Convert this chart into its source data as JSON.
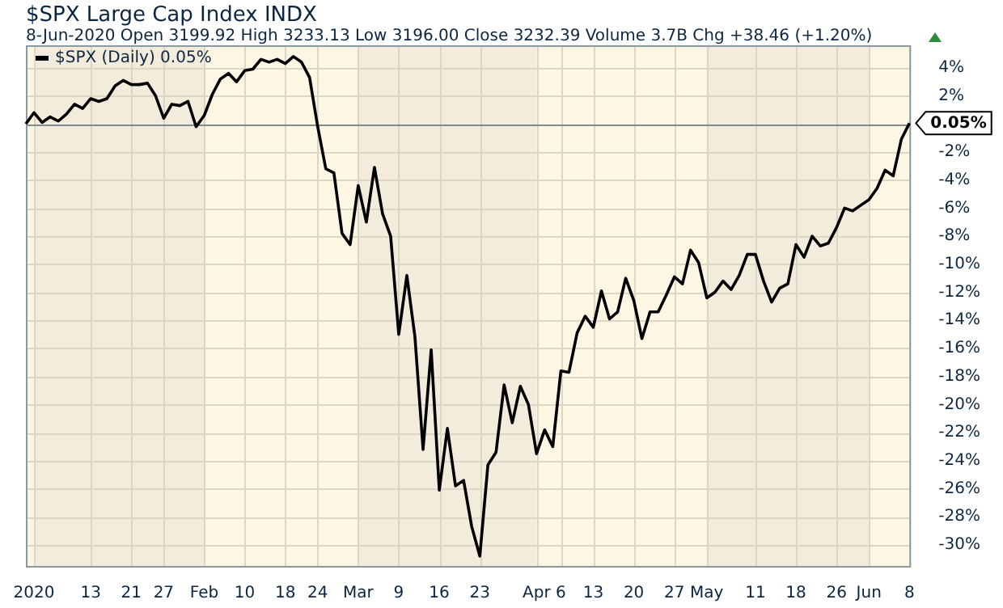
{
  "chart_data": {
    "type": "line",
    "title": "$SPX Large Cap Index INDX",
    "subtitle": "8-Jun-2020   Open 3199.92  High 3233.13  Low 3196.00  Close 3232.39  Volume 3.7B  Chg +38.46 (+1.20%)",
    "categories": [
      null,
      "2020",
      null,
      null,
      null,
      null,
      null,
      null,
      "13",
      null,
      null,
      null,
      null,
      "21",
      null,
      null,
      null,
      "27",
      null,
      null,
      null,
      null,
      "Feb",
      null,
      null,
      null,
      null,
      "10",
      null,
      null,
      null,
      null,
      "18",
      null,
      null,
      null,
      "24",
      null,
      null,
      null,
      null,
      "Mar",
      null,
      null,
      null,
      null,
      "9",
      null,
      null,
      null,
      null,
      "16",
      null,
      null,
      null,
      null,
      "23",
      null,
      null,
      null,
      null,
      null,
      null,
      "Apr",
      null,
      null,
      "6",
      null,
      null,
      null,
      "13",
      null,
      null,
      null,
      null,
      "20",
      null,
      null,
      null,
      null,
      "27",
      null,
      null,
      null,
      "May",
      null,
      null,
      null,
      null,
      null,
      "11",
      null,
      null,
      null,
      null,
      "18",
      null,
      null,
      null,
      null,
      "26",
      null,
      null,
      null,
      "Jun",
      null,
      null,
      null,
      null,
      "8"
    ],
    "series": [
      {
        "name": "$SPX (Daily) 0.05%",
        "color": "#000000",
        "values": [
          0,
          0.8,
          0.1,
          0.5,
          0.2,
          0.7,
          1.4,
          1.1,
          1.8,
          1.6,
          1.8,
          2.7,
          3.1,
          2.8,
          2.8,
          2.9,
          2.0,
          0.4,
          1.4,
          1.3,
          1.6,
          -0.2,
          0.6,
          2.1,
          3.2,
          3.6,
          3.0,
          3.8,
          3.9,
          4.6,
          4.4,
          4.6,
          4.3,
          4.8,
          4.4,
          3.3,
          -0.2,
          -3.2,
          -3.5,
          -7.8,
          -8.6,
          -4.4,
          -7.0,
          -3.1,
          -6.4,
          -8.0,
          -15.0,
          -10.8,
          -15.2,
          -23.2,
          -16.1,
          -26.1,
          -21.7,
          -25.8,
          -25.4,
          -28.7,
          -30.8,
          -24.3,
          -23.4,
          -18.6,
          -21.3,
          -18.7,
          -20.0,
          -23.5,
          -21.8,
          -23.0,
          -17.6,
          -17.7,
          -14.9,
          -13.7,
          -14.5,
          -11.9,
          -13.9,
          -13.4,
          -11.0,
          -12.6,
          -15.3,
          -13.4,
          -13.4,
          -12.2,
          -10.9,
          -11.4,
          -9.0,
          -9.9,
          -12.4,
          -12.0,
          -11.2,
          -11.8,
          -10.8,
          -9.3,
          -9.3,
          -11.2,
          -12.7,
          -11.7,
          -11.4,
          -8.6,
          -9.5,
          -8.0,
          -8.7,
          -8.5,
          -7.4,
          -6.0,
          -6.2,
          -5.8,
          -5.4,
          -4.6,
          -3.3,
          -3.7,
          -1.1,
          0.05
        ]
      }
    ],
    "ylim": [
      -31.5,
      5.6
    ],
    "yticks": [
      {
        "value": 4,
        "label": "4%"
      },
      {
        "value": 2,
        "label": "2%"
      },
      {
        "value": 0,
        "label": null
      },
      {
        "value": -2,
        "label": "-2%"
      },
      {
        "value": -4,
        "label": "-4%"
      },
      {
        "value": -6,
        "label": "-6%"
      },
      {
        "value": -8,
        "label": "-8%"
      },
      {
        "value": -10,
        "label": "-10%"
      },
      {
        "value": -12,
        "label": "-12%"
      },
      {
        "value": -14,
        "label": "-14%"
      },
      {
        "value": -16,
        "label": "-16%"
      },
      {
        "value": -18,
        "label": "-18%"
      },
      {
        "value": -20,
        "label": "-20%"
      },
      {
        "value": -22,
        "label": "-22%"
      },
      {
        "value": -24,
        "label": "-24%"
      },
      {
        "value": -26,
        "label": "-26%"
      },
      {
        "value": -28,
        "label": "-28%"
      },
      {
        "value": -30,
        "label": "-30%"
      }
    ],
    "ref_lines": [
      {
        "axis": "y",
        "value": 0,
        "color": "#7f8c8d"
      }
    ],
    "bands": [
      {
        "axis": "x",
        "from": "2020",
        "to": "Feb",
        "color": "#f3ecdc"
      },
      {
        "axis": "x",
        "from": "Mar",
        "to": "Apr",
        "color": "#f3ecdc"
      },
      {
        "axis": "x",
        "from": "May",
        "to": "Jun",
        "color": "#f3ecdc"
      }
    ],
    "annotations": [
      {
        "text": "0.05%",
        "x": "8",
        "y": 0.05
      }
    ],
    "grid": true,
    "legend": "top left",
    "marker": "none",
    "line_style": "solid"
  }
}
